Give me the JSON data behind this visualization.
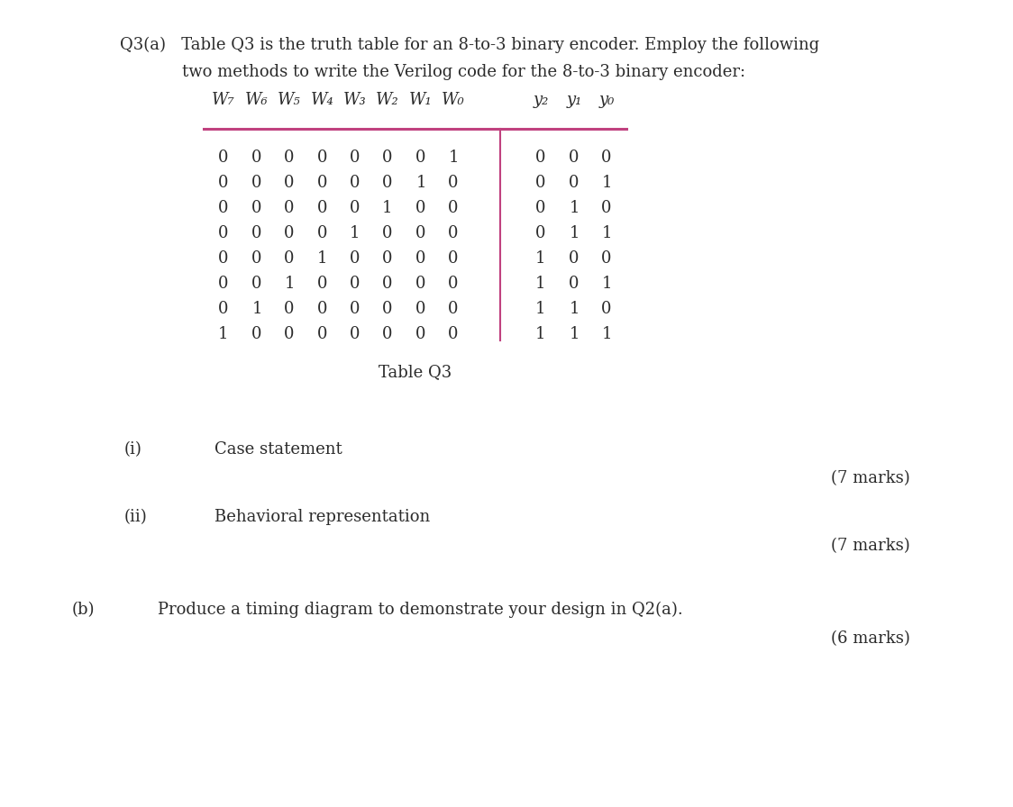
{
  "bg_color": "#ffffff",
  "header_inputs": [
    "W₇",
    "W₆",
    "W₅",
    "W₄",
    "W₃",
    "W₂",
    "W₁",
    "W₀"
  ],
  "header_outputs": [
    "y₂",
    "y₁",
    "y₀"
  ],
  "table_data": [
    [
      0,
      0,
      0,
      0,
      0,
      0,
      0,
      1,
      0,
      0,
      0
    ],
    [
      0,
      0,
      0,
      0,
      0,
      0,
      1,
      0,
      0,
      0,
      1
    ],
    [
      0,
      0,
      0,
      0,
      0,
      1,
      0,
      0,
      0,
      1,
      0
    ],
    [
      0,
      0,
      0,
      0,
      1,
      0,
      0,
      0,
      0,
      1,
      1
    ],
    [
      0,
      0,
      0,
      1,
      0,
      0,
      0,
      0,
      1,
      0,
      0
    ],
    [
      0,
      0,
      1,
      0,
      0,
      0,
      0,
      0,
      1,
      0,
      1
    ],
    [
      0,
      1,
      0,
      0,
      0,
      0,
      0,
      0,
      1,
      1,
      0
    ],
    [
      1,
      0,
      0,
      0,
      0,
      0,
      0,
      0,
      1,
      1,
      1
    ]
  ],
  "table_caption": "Table Q3",
  "divider_color": "#c0417f",
  "text_color": "#2b2b2b",
  "title_line1": "Q3(a)   Table Q3 is the truth table for an 8-to-3 binary encoder. Employ the following",
  "title_line2": "            two methods to write the Verilog code for the 8-to-3 binary encoder:",
  "part_i_label": "(i)",
  "part_i_text": "Case statement",
  "part_i_marks": "(7 marks)",
  "part_ii_label": "(ii)",
  "part_ii_text": "Behavioral representation",
  "part_ii_marks": "(7 marks)",
  "part_b_label": "(b)",
  "part_b_text": "Produce a timing diagram to demonstrate your design in Q2(a).",
  "part_b_marks": "(6 marks)",
  "title_fs": 13.0,
  "body_fs": 13.0,
  "table_fs": 13.0
}
